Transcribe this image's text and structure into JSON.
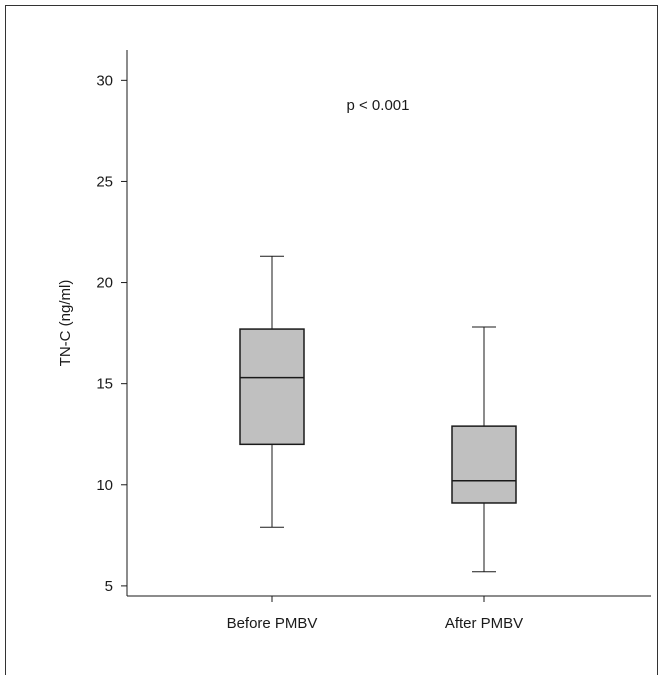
{
  "chart_data": {
    "type": "box",
    "title": "",
    "xlabel": "",
    "ylabel": "TN-C (ng/ml)",
    "ylim": [
      4.5,
      31.5
    ],
    "yticks": [
      5,
      10,
      15,
      20,
      25,
      30
    ],
    "ytick_labels": [
      "5",
      "10",
      "15",
      "20",
      "25",
      "30"
    ],
    "categories": [
      "Before PMBV",
      "After PMBV"
    ],
    "boxes": [
      {
        "category": "Before PMBV",
        "whisker_low": 7.9,
        "q1": 12.0,
        "median": 15.3,
        "q3": 17.7,
        "whisker_high": 21.3
      },
      {
        "category": "After PMBV",
        "whisker_low": 5.7,
        "q1": 9.1,
        "median": 10.2,
        "q3": 12.9,
        "whisker_high": 17.8
      }
    ],
    "annotation": "p < 0.001",
    "box_color": "#c0c0c0",
    "grid": false
  }
}
